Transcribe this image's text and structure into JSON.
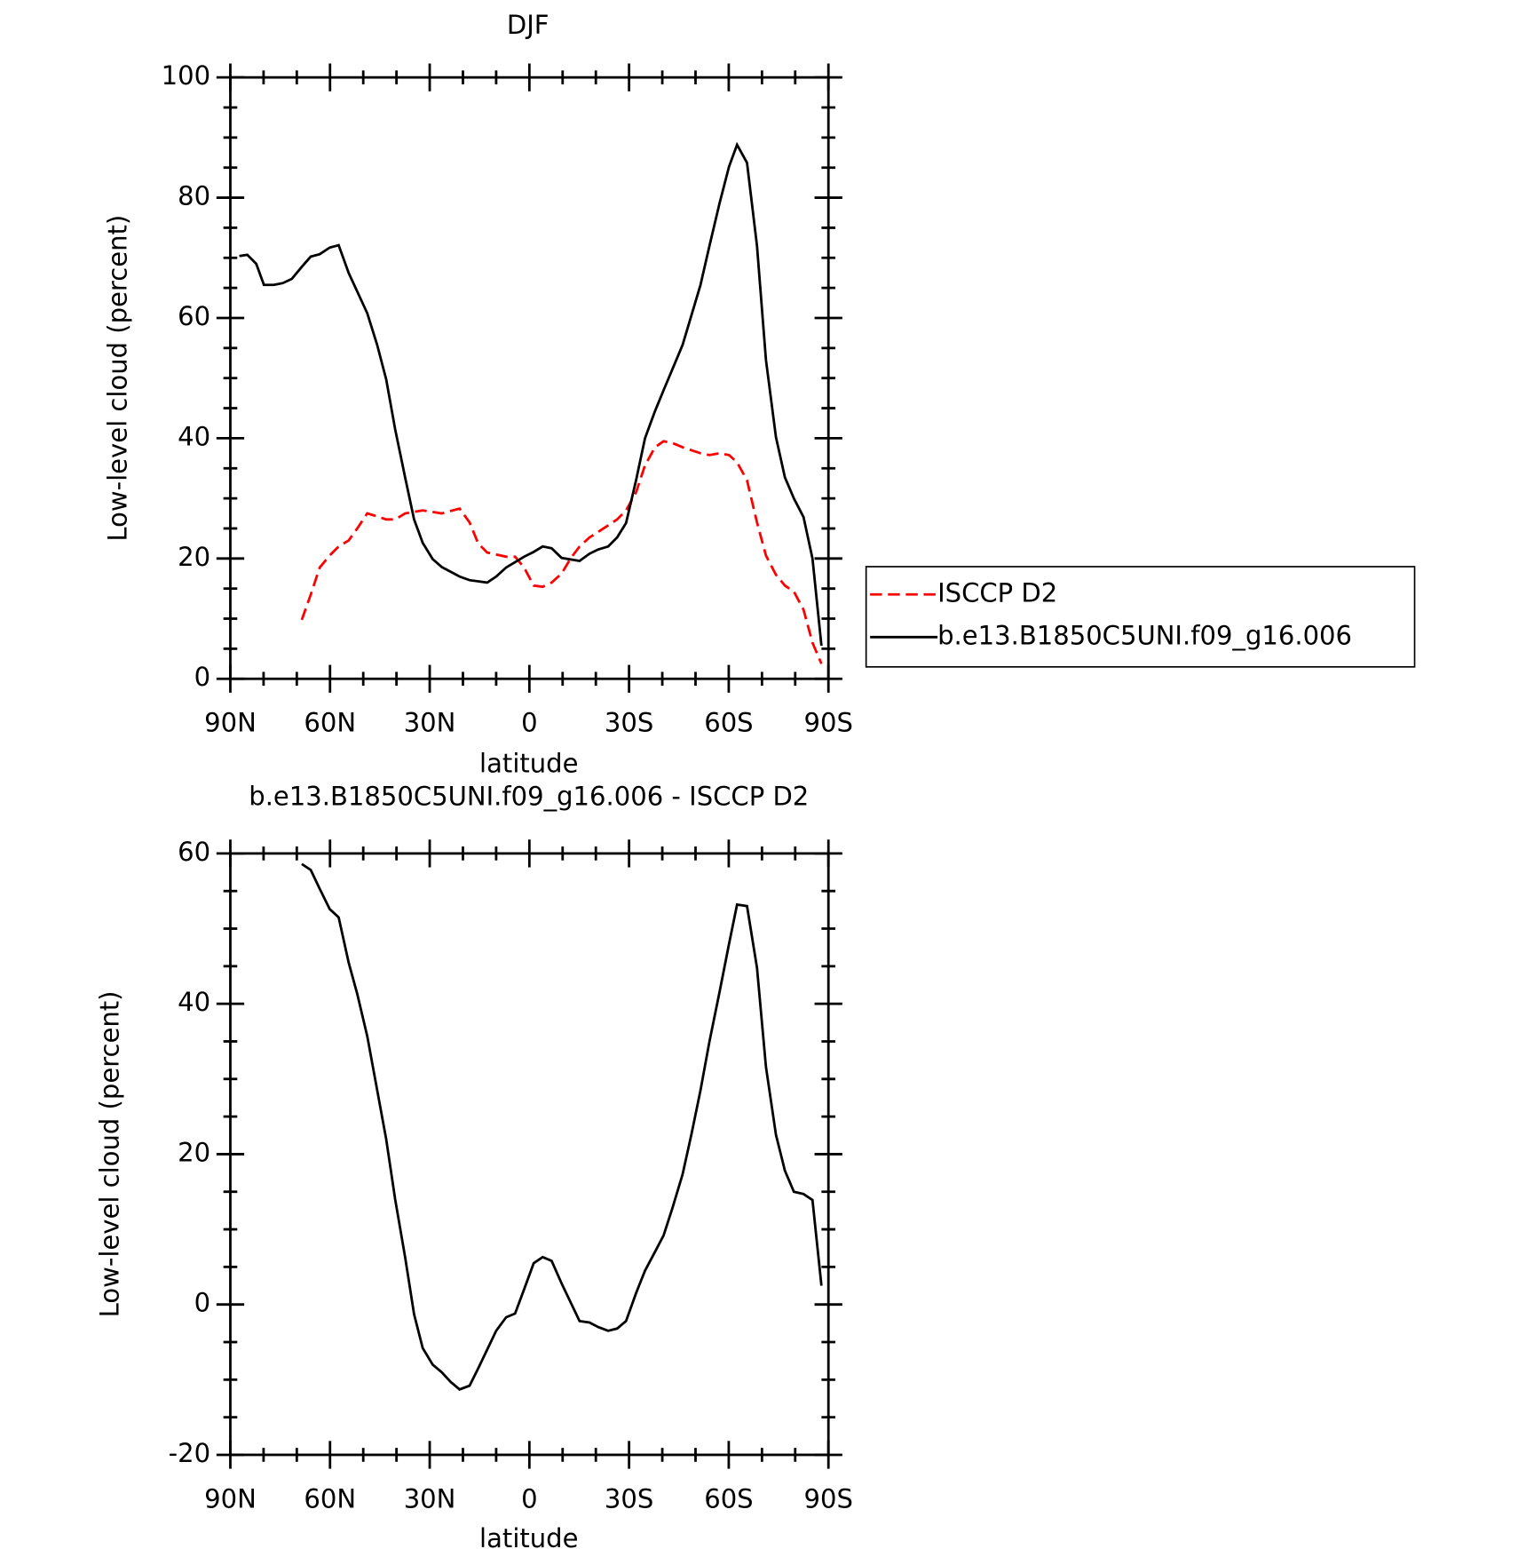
{
  "chart_data": [
    {
      "type": "line",
      "title": "DJF",
      "xlabel": "latitude",
      "ylabel": "Low-level cloud (percent)",
      "xlim": [
        90,
        -90
      ],
      "xticks": [
        {
          "value": 90,
          "label": "90N"
        },
        {
          "value": 60,
          "label": "60N"
        },
        {
          "value": 30,
          "label": "30N"
        },
        0,
        {
          "value": -30,
          "label": "30S"
        },
        {
          "value": -60,
          "label": "60S"
        },
        {
          "value": -90,
          "label": "90S"
        }
      ],
      "ylim": [
        0,
        100
      ],
      "yticks": [
        0,
        20,
        40,
        60,
        80,
        100
      ],
      "legend": "right",
      "series": [
        {
          "name": "ISCCP D2",
          "color": "#ff0000",
          "line_style": "dashed",
          "x": [
            68.5,
            65.8,
            63.1,
            60.1,
            57.4,
            54.4,
            51.8,
            48.8,
            45.8,
            43.1,
            40.4,
            37.4,
            32.1,
            26.4,
            21,
            18,
            15.4,
            12.7,
            7,
            4.3,
            1.6,
            -1.3,
            -4,
            -6.7,
            -9.7,
            -12.4,
            -15.1,
            -18.1,
            -23.7,
            -26.4,
            -29.1,
            -32.1,
            -34.8,
            -37.8,
            -40.4,
            -43.1,
            -46.1,
            -48.8,
            -51.5,
            -54.2,
            -57.2,
            -60.1,
            -62.5,
            -65.5,
            -68.5,
            -71.2,
            -74.2,
            -76.9,
            -79.6,
            -82.5,
            -85.2,
            -87.9
          ],
          "values": [
            9.8,
            14,
            18.5,
            20.5,
            22,
            23,
            25,
            27.5,
            27,
            26.5,
            26.5,
            27.5,
            28,
            27.5,
            28.3,
            26,
            22.5,
            21,
            20.3,
            20.3,
            18.5,
            15.5,
            15.3,
            16,
            17.5,
            20,
            22,
            23.5,
            25.5,
            26.5,
            28,
            31,
            35.5,
            38.5,
            39.5,
            39.2,
            38.5,
            38,
            37.5,
            37.2,
            37.5,
            37.2,
            36,
            33,
            26,
            20.5,
            17.3,
            15.5,
            14.5,
            11.5,
            6,
            2.5
          ]
        },
        {
          "name": "b.e13.B1850C5UNI.f09_g16.006",
          "color": "#000000",
          "line_style": "solid",
          "x": [
            87.3,
            84.9,
            82.2,
            79.9,
            76.9,
            74.2,
            71.5,
            68.5,
            65.8,
            63.1,
            60.1,
            57.4,
            54.4,
            48.8,
            45.8,
            43.1,
            40.4,
            37.4,
            34.7,
            32.1,
            29.1,
            26.4,
            23.7,
            21,
            18,
            12.7,
            10,
            7,
            4.3,
            1.6,
            -1.3,
            -4,
            -6.7,
            -9.7,
            -15.1,
            -18.1,
            -20.7,
            -23.7,
            -26.4,
            -29.1,
            -32.1,
            -34.8,
            -37.8,
            -40.4,
            -46.1,
            -51.5,
            -54.2,
            -57.2,
            -60.1,
            -62.5,
            -65.5,
            -68.5,
            -71.2,
            -74.2,
            -76.9,
            -79.6,
            -82.5,
            -85.2,
            -87.9
          ],
          "values": [
            70.3,
            70.5,
            69,
            65.5,
            65.5,
            65.8,
            66.5,
            68.5,
            70.2,
            70.6,
            71.7,
            72.1,
            67.5,
            60.8,
            55.5,
            49.8,
            41.5,
            33.5,
            26.5,
            22.6,
            19.9,
            18.6,
            17.8,
            17,
            16.4,
            16,
            17,
            18.5,
            19.4,
            20.3,
            21.1,
            22,
            21.7,
            20.1,
            19.6,
            20.8,
            21.5,
            22,
            23.5,
            25.9,
            33,
            40,
            44.5,
            48,
            55.5,
            65.5,
            72,
            79,
            85.2,
            88.8,
            85.8,
            72,
            53,
            40.2,
            33.5,
            30,
            26.9,
            20,
            5.5
          ]
        }
      ]
    },
    {
      "type": "line",
      "title": "b.e13.B1850C5UNI.f09_g16.006 - ISCCP D2",
      "xlabel": "latitude",
      "ylabel": "Low-level cloud (percent)",
      "xlim": [
        90,
        -90
      ],
      "xticks": [
        {
          "value": 90,
          "label": "90N"
        },
        {
          "value": 60,
          "label": "60N"
        },
        {
          "value": 30,
          "label": "30N"
        },
        0,
        {
          "value": -30,
          "label": "30S"
        },
        {
          "value": -60,
          "label": "60S"
        },
        {
          "value": -90,
          "label": "90S"
        }
      ],
      "ylim": [
        -20,
        60
      ],
      "yticks": [
        -20,
        0,
        20,
        40,
        60
      ],
      "series": [
        {
          "color": "#000000",
          "line_style": "solid",
          "x": [
            68.5,
            65.8,
            63.1,
            60.1,
            57.4,
            54.4,
            51.8,
            48.8,
            45.8,
            43.1,
            40.4,
            37.4,
            34.7,
            32.1,
            29.1,
            26.4,
            23.7,
            21,
            18,
            15.4,
            12.7,
            10,
            7,
            4.3,
            1.6,
            -1.3,
            -4,
            -6.7,
            -9.7,
            -15.1,
            -18.1,
            -20.7,
            -23.7,
            -26.4,
            -29.1,
            -32.1,
            -34.8,
            -37.8,
            -40.4,
            -43.1,
            -46.1,
            -48.8,
            -51.5,
            -54.2,
            -57.2,
            -60.1,
            -62.5,
            -65.5,
            -68.5,
            -71.2,
            -74.2,
            -76.9,
            -79.6,
            -82.5,
            -85.2,
            -87.9
          ],
          "values": [
            58.6,
            57.8,
            55.3,
            52.6,
            51.5,
            45.5,
            41.3,
            35.7,
            28.5,
            22,
            14,
            6.3,
            -1.3,
            -5.8,
            -8,
            -9,
            -10.3,
            -11.3,
            -10.8,
            -8.5,
            -6,
            -3.5,
            -1.7,
            -1.2,
            2,
            5.5,
            6.3,
            5.8,
            2.8,
            -2.2,
            -2.4,
            -3,
            -3.5,
            -3.2,
            -2.2,
            1.5,
            4.5,
            7,
            9.2,
            12.9,
            17.3,
            22.7,
            28.5,
            35,
            41.5,
            48,
            53.2,
            53,
            44.8,
            31.6,
            22.6,
            17.8,
            15,
            14.7,
            13.9,
            2.5
          ]
        }
      ]
    }
  ]
}
